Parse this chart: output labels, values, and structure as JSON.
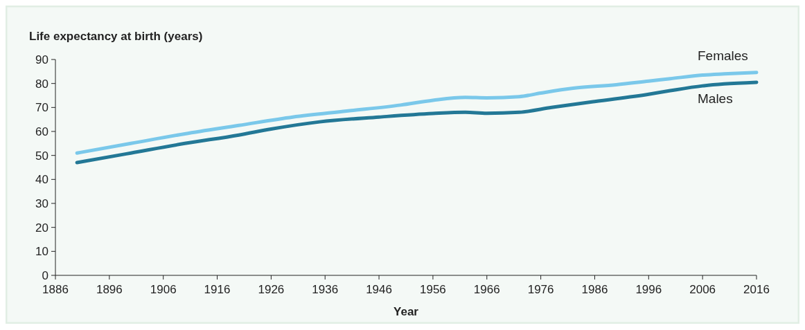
{
  "chart_data": {
    "type": "line",
    "ylabel": "Life expectancy at birth (years)",
    "xlabel": "Year",
    "xlim": [
      1886,
      2016
    ],
    "xticks": [
      1886,
      1896,
      1906,
      1916,
      1926,
      1936,
      1946,
      1956,
      1966,
      1976,
      1986,
      1996,
      2006,
      2016
    ],
    "ylim": [
      0,
      90
    ],
    "yticks": [
      0,
      10,
      20,
      30,
      40,
      50,
      60,
      70,
      80,
      90
    ],
    "grid": false,
    "legend": false,
    "line_style": "solid",
    "marker": "none",
    "series": [
      {
        "name": "Females",
        "color": "#7ac8ea",
        "x": [
          1890,
          1900,
          1910,
          1920,
          1930,
          1940,
          1950,
          1956,
          1962,
          1966,
          1972,
          1976,
          1982,
          1990,
          1996,
          2000,
          2006,
          2010,
          2016
        ],
        "values": [
          51,
          55,
          59,
          62.5,
          66,
          68.5,
          71,
          73,
          74.2,
          74,
          74.5,
          76,
          78,
          79.5,
          81,
          82,
          83.5,
          84,
          84.6
        ]
      },
      {
        "name": "Males",
        "color": "#237896",
        "x": [
          1890,
          1900,
          1910,
          1920,
          1926,
          1935,
          1946,
          1956,
          1962,
          1966,
          1972,
          1978,
          1986,
          1996,
          2000,
          2006,
          2010,
          2016
        ],
        "values": [
          47,
          51,
          55,
          58.5,
          61,
          64,
          66,
          67.5,
          68,
          67.6,
          68,
          70,
          72.5,
          75.5,
          77,
          79,
          79.8,
          80.5
        ]
      }
    ]
  }
}
